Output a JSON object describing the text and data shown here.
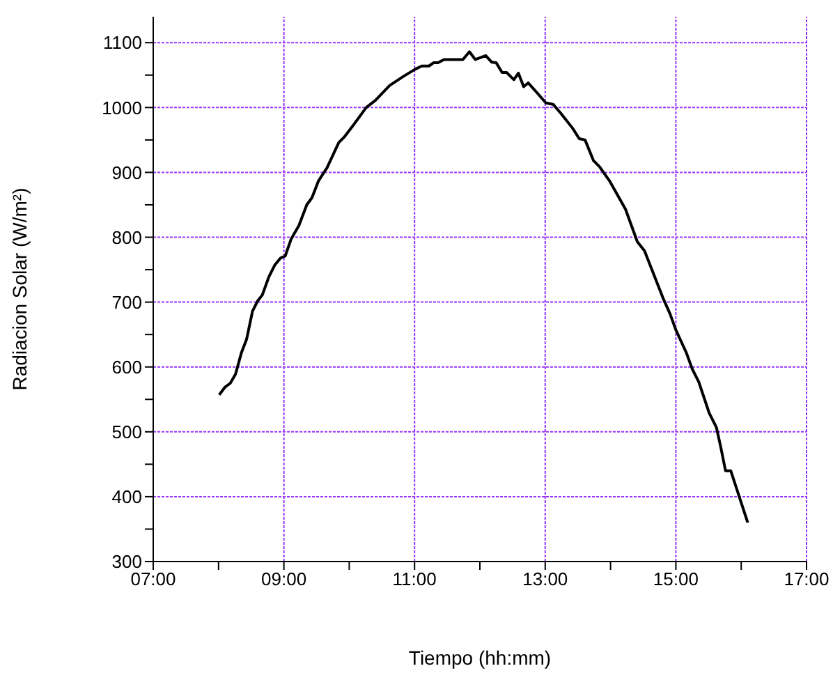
{
  "chart_data": {
    "type": "line",
    "xlabel": "Tiempo (hh:mm)",
    "ylabel": "Radiacion Solar (W/m²)",
    "xlim": [
      7,
      17
    ],
    "ylim": [
      300,
      1140
    ],
    "xticks": [
      {
        "value": 7,
        "label": "07:00"
      },
      {
        "value": 8,
        "label": null
      },
      {
        "value": 9,
        "label": "09:00"
      },
      {
        "value": 10,
        "label": null
      },
      {
        "value": 11,
        "label": "11:00"
      },
      {
        "value": 12,
        "label": null
      },
      {
        "value": 13,
        "label": "13:00"
      },
      {
        "value": 14,
        "label": null
      },
      {
        "value": 15,
        "label": "15:00"
      },
      {
        "value": 16,
        "label": null
      },
      {
        "value": 17,
        "label": "17:00"
      }
    ],
    "yticks": [
      300,
      {
        "value": 350,
        "label": null
      },
      400,
      {
        "value": 450,
        "label": null
      },
      500,
      {
        "value": 550,
        "label": null
      },
      600,
      {
        "value": 650,
        "label": null
      },
      700,
      {
        "value": 750,
        "label": null
      },
      800,
      {
        "value": 850,
        "label": null
      },
      900,
      {
        "value": 950,
        "label": null
      },
      1000,
      {
        "value": 1050,
        "label": null
      },
      1100
    ],
    "grid": true,
    "marker": "none",
    "line_style": "solid",
    "series": [
      {
        "color": "#000000",
        "x": [
          8.01,
          8.1,
          8.18,
          8.26,
          8.35,
          8.43,
          8.52,
          8.6,
          8.67,
          8.77,
          8.86,
          8.95,
          9.02,
          9.11,
          9.23,
          9.35,
          9.43,
          9.53,
          9.66,
          9.84,
          9.92,
          10.05,
          10.26,
          10.4,
          10.62,
          10.83,
          11.01,
          11.11,
          11.22,
          11.29,
          11.36,
          11.45,
          11.74,
          11.84,
          11.93,
          12.09,
          12.18,
          12.25,
          12.34,
          12.41,
          12.52,
          12.59,
          12.67,
          12.74,
          12.89,
          13.01,
          13.12,
          13.24,
          13.42,
          13.52,
          13.61,
          13.74,
          13.83,
          13.99,
          14.13,
          14.23,
          14.41,
          14.52,
          14.8,
          14.91,
          15.0,
          15.16,
          15.25,
          15.35,
          15.51,
          15.62,
          15.69,
          15.76,
          15.84,
          16.1
        ],
        "values": [
          557,
          569,
          575,
          589,
          622,
          643,
          686,
          702,
          711,
          739,
          757,
          768,
          771,
          797,
          818,
          850,
          861,
          887,
          907,
          946,
          954,
          971,
          1000,
          1011,
          1034,
          1048,
          1059,
          1064,
          1064,
          1069,
          1069,
          1074,
          1074,
          1086,
          1074,
          1080,
          1070,
          1069,
          1054,
          1054,
          1043,
          1053,
          1032,
          1038,
          1021,
          1007,
          1005,
          991,
          968,
          952,
          950,
          918,
          909,
          886,
          861,
          843,
          793,
          779,
          707,
          682,
          657,
          622,
          597,
          577,
          529,
          507,
          475,
          440,
          440,
          360
        ]
      }
    ]
  }
}
